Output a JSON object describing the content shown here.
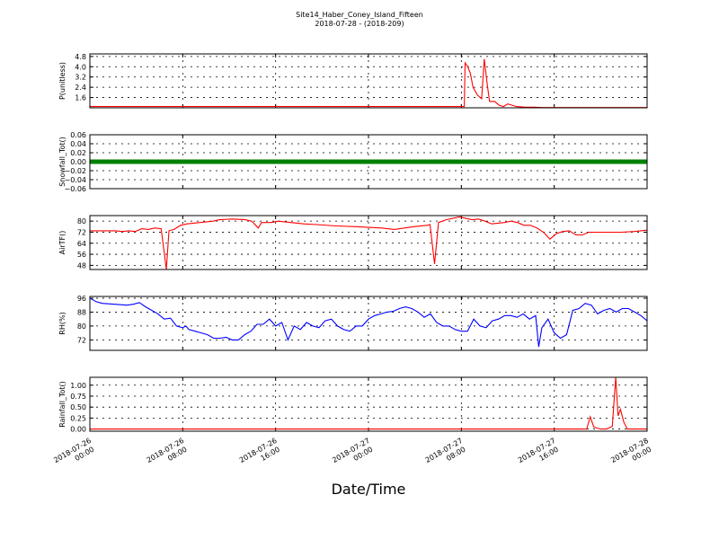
{
  "figure": {
    "title_line1": "Site14_Haber_Coney_Island_Fifteen",
    "title_line2": "2018-07-28 - (2018-209)",
    "xlabel": "Date/Time"
  },
  "chart_data": [
    {
      "type": "line",
      "ylabel": "P(unitless)",
      "ylim": [
        0.8,
        5.0
      ],
      "yticks": [
        1.6,
        2.4,
        3.2,
        4.0,
        4.8
      ],
      "ytick_labels": [
        "1.6",
        "2.4",
        "3.2",
        "4.0",
        "4.8"
      ],
      "grid": true,
      "series": [
        {
          "color": "#ff0000",
          "points": [
            [
              0,
              0.9
            ],
            [
              43,
              0.9
            ],
            [
              43.1,
              4.3
            ],
            [
              43.4,
              4.0
            ],
            [
              43.7,
              3.5
            ],
            [
              44,
              2.4
            ],
            [
              44.5,
              1.8
            ],
            [
              45,
              1.5
            ],
            [
              45.3,
              4.6
            ],
            [
              45.6,
              2.8
            ],
            [
              45.9,
              1.3
            ],
            [
              46.5,
              1.3
            ],
            [
              47,
              1.0
            ],
            [
              47.5,
              0.9
            ],
            [
              48,
              1.1
            ],
            [
              48.5,
              1.0
            ],
            [
              49,
              0.9
            ],
            [
              50,
              0.85
            ],
            [
              51,
              0.85
            ],
            [
              52,
              0.82
            ],
            [
              53,
              0.82
            ],
            [
              55,
              0.82
            ],
            [
              60,
              0.82
            ],
            [
              64,
              0.82
            ]
          ]
        }
      ]
    },
    {
      "type": "line",
      "ylabel": "Snowfall_Tot()",
      "ylim": [
        -0.06,
        0.06
      ],
      "yticks": [
        -0.06,
        -0.04,
        -0.02,
        0.0,
        0.02,
        0.04,
        0.06
      ],
      "ytick_labels": [
        "−0.06",
        "−0.04",
        "−0.02",
        "0.00",
        "0.02",
        "0.04",
        "0.06"
      ],
      "grid": true,
      "series": [
        {
          "color": "#008000",
          "marker": "dot",
          "points": [
            [
              0,
              0
            ],
            [
              48,
              0
            ]
          ]
        }
      ]
    },
    {
      "type": "line",
      "ylabel": "AirTF()",
      "ylim": [
        45,
        84
      ],
      "yticks": [
        48,
        56,
        64,
        72,
        80
      ],
      "ytick_labels": [
        "48",
        "56",
        "64",
        "72",
        "80"
      ],
      "grid": true,
      "series": [
        {
          "color": "#ff0000",
          "points": [
            [
              0,
              73
            ],
            [
              2,
              73
            ],
            [
              4,
              73
            ],
            [
              5,
              72.5
            ],
            [
              6,
              73
            ],
            [
              7,
              72.5
            ],
            [
              8,
              74.5
            ],
            [
              9,
              74
            ],
            [
              10,
              75
            ],
            [
              11,
              74.5
            ],
            [
              11.8,
              45
            ],
            [
              12.2,
              73
            ],
            [
              13,
              74
            ],
            [
              14,
              77
            ],
            [
              15,
              78
            ],
            [
              17,
              79
            ],
            [
              19,
              80
            ],
            [
              20,
              81
            ],
            [
              22,
              81.5
            ],
            [
              24,
              81
            ],
            [
              25,
              80
            ],
            [
              26,
              75
            ],
            [
              26.5,
              79
            ],
            [
              28,
              79
            ],
            [
              29,
              80
            ],
            [
              31,
              79
            ],
            [
              33,
              78
            ],
            [
              35,
              77.5
            ],
            [
              38,
              76.5
            ],
            [
              41,
              76
            ],
            [
              45,
              75
            ],
            [
              47,
              74
            ],
            [
              50,
              76
            ],
            [
              52,
              77
            ],
            [
              52.5,
              77.5
            ],
            [
              53.2,
              49
            ],
            [
              53.8,
              79
            ],
            [
              55,
              81
            ],
            [
              57,
              83
            ],
            [
              59,
              81
            ],
            [
              60,
              81.5
            ],
            [
              61,
              80
            ],
            [
              62,
              78
            ],
            [
              64,
              79
            ],
            [
              65,
              80
            ],
            [
              66,
              79
            ],
            [
              67,
              77
            ],
            [
              68,
              77
            ],
            [
              69,
              75
            ],
            [
              70,
              72
            ],
            [
              71,
              67
            ],
            [
              72,
              71
            ],
            [
              73,
              72.5
            ],
            [
              74,
              73
            ],
            [
              75,
              70
            ],
            [
              76,
              70
            ],
            [
              77,
              72
            ],
            [
              78,
              72
            ],
            [
              80,
              72
            ],
            [
              82,
              72
            ],
            [
              84,
              72.5
            ],
            [
              86,
              73.5
            ]
          ]
        }
      ]
    },
    {
      "type": "line",
      "ylabel": "RH(%)",
      "ylim": [
        66,
        97
      ],
      "yticks": [
        72,
        80,
        88,
        96
      ],
      "ytick_labels": [
        "72",
        "80",
        "88",
        "96"
      ],
      "grid": true,
      "series": [
        {
          "color": "#0000ff",
          "points": [
            [
              0,
              96
            ],
            [
              1,
              94
            ],
            [
              2,
              93
            ],
            [
              4,
              92.5
            ],
            [
              6,
              92
            ],
            [
              7,
              92.5
            ],
            [
              8,
              93.5
            ],
            [
              9,
              91
            ],
            [
              10,
              89
            ],
            [
              11,
              87
            ],
            [
              12,
              84
            ],
            [
              13,
              84.5
            ],
            [
              14,
              80
            ],
            [
              15,
              79
            ],
            [
              15.5,
              80
            ],
            [
              16,
              78
            ],
            [
              17,
              77
            ],
            [
              18,
              76
            ],
            [
              19,
              75
            ],
            [
              20,
              73
            ],
            [
              21,
              73
            ],
            [
              22,
              73.5
            ],
            [
              23,
              72
            ],
            [
              24,
              72
            ],
            [
              25,
              75
            ],
            [
              26,
              77
            ],
            [
              27,
              81
            ],
            [
              28,
              81
            ],
            [
              29,
              84
            ],
            [
              30,
              80
            ],
            [
              31,
              82
            ],
            [
              32,
              72
            ],
            [
              33,
              80
            ],
            [
              34,
              78
            ],
            [
              35,
              82
            ],
            [
              36,
              80
            ],
            [
              37,
              79
            ],
            [
              38,
              83
            ],
            [
              39,
              84
            ],
            [
              40,
              80
            ],
            [
              41,
              78
            ],
            [
              42,
              77
            ],
            [
              43,
              80
            ],
            [
              44,
              80
            ],
            [
              45,
              84
            ],
            [
              46,
              86
            ],
            [
              47,
              87
            ],
            [
              48,
              88
            ],
            [
              49,
              88.5
            ],
            [
              50,
              90
            ],
            [
              51,
              91
            ],
            [
              52,
              90
            ],
            [
              53,
              88
            ],
            [
              54,
              85
            ],
            [
              55,
              87
            ],
            [
              56,
              82
            ],
            [
              57,
              80
            ],
            [
              58,
              80
            ],
            [
              59,
              78
            ],
            [
              60,
              77
            ],
            [
              61,
              77
            ],
            [
              62,
              84
            ],
            [
              63,
              80
            ],
            [
              64,
              79
            ],
            [
              65,
              83
            ],
            [
              66,
              84
            ],
            [
              67,
              86
            ],
            [
              68,
              86
            ],
            [
              69,
              85
            ],
            [
              70,
              87
            ],
            [
              71,
              84
            ],
            [
              72,
              86
            ],
            [
              72.5,
              68
            ],
            [
              73,
              79
            ],
            [
              74,
              84
            ],
            [
              75,
              76
            ],
            [
              76,
              73
            ],
            [
              77,
              75
            ],
            [
              78,
              89
            ],
            [
              79,
              90
            ],
            [
              80,
              93
            ],
            [
              81,
              92
            ],
            [
              82,
              87
            ],
            [
              83,
              89
            ],
            [
              84,
              90
            ],
            [
              85,
              88
            ],
            [
              86,
              90
            ],
            [
              87,
              90
            ],
            [
              88,
              88
            ],
            [
              89,
              86
            ],
            [
              90,
              83
            ]
          ]
        }
      ]
    },
    {
      "type": "line",
      "ylabel": "Rainfall_Tot()",
      "ylim": [
        -0.05,
        1.18
      ],
      "yticks": [
        0.0,
        0.25,
        0.5,
        0.75,
        1.0
      ],
      "ytick_labels": [
        "0.00",
        "0.25",
        "0.50",
        "0.75",
        "1.00"
      ],
      "grid": true,
      "series": [
        {
          "color": "#ff0000",
          "points": [
            [
              0,
              0
            ],
            [
              41,
              0
            ],
            [
              42.8,
              0
            ],
            [
              43.1,
              0.28
            ],
            [
              43.4,
              0.05
            ],
            [
              43.7,
              0.02
            ],
            [
              44,
              0
            ],
            [
              44.5,
              0
            ],
            [
              45,
              0.06
            ],
            [
              45.3,
              1.18
            ],
            [
              45.5,
              0.3
            ],
            [
              45.7,
              0.45
            ],
            [
              46,
              0.15
            ],
            [
              46.3,
              0
            ],
            [
              47,
              0
            ],
            [
              48,
              0
            ]
          ]
        }
      ]
    }
  ],
  "x_axis": {
    "tick_labels": [
      [
        "2018-07-26",
        "00:00"
      ],
      [
        "2018-07-26",
        "08:00"
      ],
      [
        "2018-07-26",
        "16:00"
      ],
      [
        "2018-07-27",
        "00:00"
      ],
      [
        "2018-07-27",
        "08:00"
      ],
      [
        "2018-07-27",
        "16:00"
      ],
      [
        "2018-07-28",
        "00:00"
      ]
    ]
  }
}
